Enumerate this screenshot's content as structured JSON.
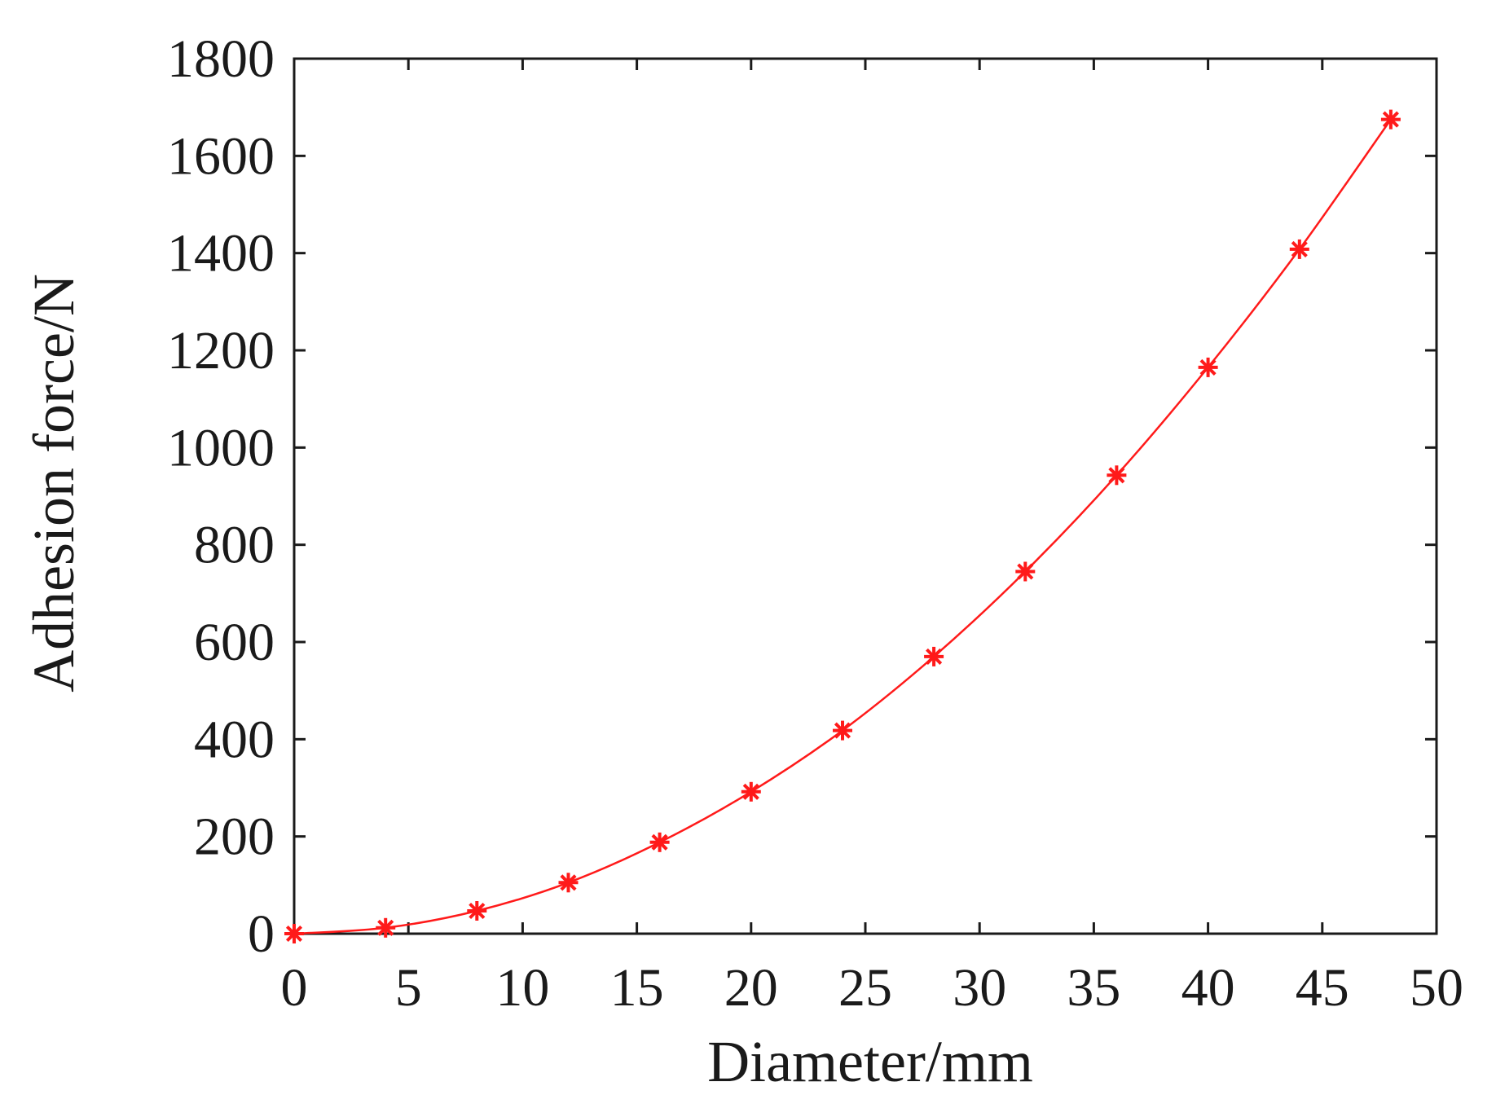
{
  "chart_data": {
    "type": "line",
    "title": "",
    "xlabel": "Diameter/mm",
    "ylabel": "Adhesion force/N",
    "xlim": [
      0,
      50
    ],
    "ylim": [
      0,
      1800
    ],
    "xticks": [
      0,
      5,
      10,
      15,
      20,
      25,
      30,
      35,
      40,
      45,
      50
    ],
    "yticks": [
      0,
      200,
      400,
      600,
      800,
      1000,
      1200,
      1400,
      1600,
      1800
    ],
    "grid": false,
    "legend": "none",
    "color": "#ff1a1a",
    "marker": "asterisk",
    "series": [
      {
        "x": [
          0,
          4,
          8,
          12,
          16,
          20,
          24,
          28,
          32,
          36,
          40,
          44,
          48
        ],
        "y": [
          0,
          12,
          47,
          105,
          188,
          292,
          418,
          570,
          745,
          943,
          1165,
          1408,
          1675
        ]
      }
    ]
  }
}
